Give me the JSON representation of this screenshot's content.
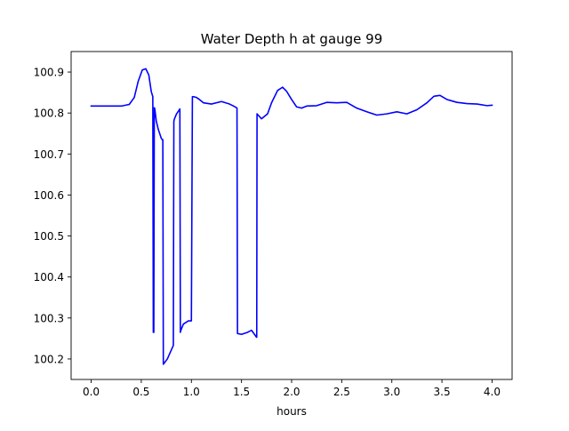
{
  "chart_data": {
    "type": "line",
    "title": "Water Depth h at gauge 99",
    "xlabel": "hours",
    "ylabel": "",
    "xlim": [
      -0.2,
      4.2
    ],
    "ylim": [
      100.15,
      100.95
    ],
    "xticks": [
      0.0,
      0.5,
      1.0,
      1.5,
      2.0,
      2.5,
      3.0,
      3.5,
      4.0
    ],
    "xtick_labels": [
      "0.0",
      "0.5",
      "1.0",
      "1.5",
      "2.0",
      "2.5",
      "3.0",
      "3.5",
      "4.0"
    ],
    "yticks": [
      100.2,
      100.3,
      100.4,
      100.5,
      100.6,
      100.7,
      100.8,
      100.9
    ],
    "ytick_labels": [
      "100.2",
      "100.3",
      "100.4",
      "100.5",
      "100.6",
      "100.7",
      "100.8",
      "100.9"
    ],
    "grid": false,
    "series": [
      {
        "color": "#0000ff",
        "x": [
          0.0,
          0.1,
          0.2,
          0.3,
          0.38,
          0.43,
          0.47,
          0.51,
          0.545,
          0.575,
          0.6,
          0.615,
          0.62,
          0.625,
          0.63,
          0.635,
          0.65,
          0.67,
          0.7,
          0.71,
          0.715,
          0.72,
          0.76,
          0.82,
          0.825,
          0.83,
          0.85,
          0.885,
          0.89,
          0.895,
          0.92,
          0.97,
          1.0,
          1.01,
          1.02,
          1.05,
          1.08,
          1.12,
          1.2,
          1.3,
          1.38,
          1.42,
          1.45,
          1.455,
          1.46,
          1.5,
          1.56,
          1.6,
          1.65,
          1.652,
          1.655,
          1.7,
          1.76,
          1.8,
          1.86,
          1.91,
          1.95,
          2.0,
          2.05,
          2.1,
          2.15,
          2.25,
          2.35,
          2.45,
          2.55,
          2.65,
          2.75,
          2.85,
          2.95,
          3.05,
          3.15,
          3.25,
          3.35,
          3.42,
          3.48,
          3.55,
          3.65,
          3.75,
          3.85,
          3.95,
          4.0
        ],
        "y": [
          100.817,
          100.817,
          100.817,
          100.817,
          100.821,
          100.838,
          100.878,
          100.905,
          100.908,
          100.893,
          100.852,
          100.84,
          100.265,
          100.265,
          100.813,
          100.81,
          100.78,
          100.76,
          100.738,
          100.735,
          100.735,
          100.187,
          100.2,
          100.233,
          100.78,
          100.785,
          100.797,
          100.81,
          100.265,
          100.27,
          100.285,
          100.293,
          100.293,
          100.84,
          100.84,
          100.838,
          100.833,
          100.825,
          100.822,
          100.828,
          100.822,
          100.817,
          100.813,
          100.812,
          100.262,
          100.26,
          100.265,
          100.27,
          100.253,
          100.253,
          100.798,
          100.786,
          100.798,
          100.825,
          100.855,
          100.863,
          100.853,
          100.833,
          100.815,
          100.812,
          100.817,
          100.818,
          100.826,
          100.825,
          100.826,
          100.812,
          100.803,
          100.795,
          100.798,
          100.803,
          100.798,
          100.808,
          100.825,
          100.841,
          100.843,
          100.833,
          100.826,
          100.823,
          100.822,
          100.818,
          100.819
        ]
      }
    ]
  }
}
